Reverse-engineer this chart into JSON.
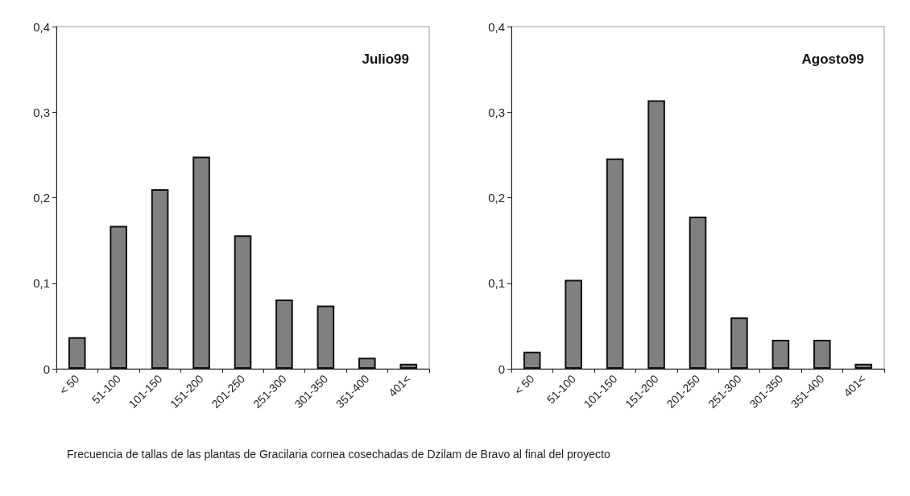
{
  "chart_data": [
    {
      "type": "bar",
      "title": "Julio99",
      "categories": [
        "< 50",
        "51-100",
        "101-150",
        "151-200",
        "201-250",
        "251-300",
        "301-350",
        "351-400",
        "401<"
      ],
      "values": [
        0.037,
        0.167,
        0.21,
        0.248,
        0.156,
        0.081,
        0.074,
        0.013,
        0.006
      ],
      "color": "#808080",
      "ylim": [
        0,
        0.4
      ],
      "yticks": [
        {
          "value": 0,
          "label": "0"
        },
        {
          "value": 0.1,
          "label": "0,1"
        },
        {
          "value": 0.2,
          "label": "0,2"
        },
        {
          "value": 0.3,
          "label": "0,3"
        },
        {
          "value": 0.4,
          "label": "0,4"
        }
      ],
      "grid": false
    },
    {
      "type": "bar",
      "title": "Agosto99",
      "categories": [
        "< 50",
        "51-100",
        "101-150",
        "151-200",
        "201-250",
        "251-300",
        "301-350",
        "351-400",
        "401<"
      ],
      "values": [
        0.02,
        0.104,
        0.246,
        0.314,
        0.178,
        0.06,
        0.034,
        0.034,
        0.006
      ],
      "color": "#808080",
      "ylim": [
        0,
        0.4
      ],
      "yticks": [
        {
          "value": 0,
          "label": "0"
        },
        {
          "value": 0.1,
          "label": "0,1"
        },
        {
          "value": 0.2,
          "label": "0,2"
        },
        {
          "value": 0.3,
          "label": "0,3"
        },
        {
          "value": 0.4,
          "label": "0,4"
        }
      ],
      "grid": false,
      "annotations": [
        "Frecuencia de tallas de las plantas de Gracilaria cornea cosechadas de Dzilam de Bravo al final del proyecto"
      ]
    }
  ]
}
